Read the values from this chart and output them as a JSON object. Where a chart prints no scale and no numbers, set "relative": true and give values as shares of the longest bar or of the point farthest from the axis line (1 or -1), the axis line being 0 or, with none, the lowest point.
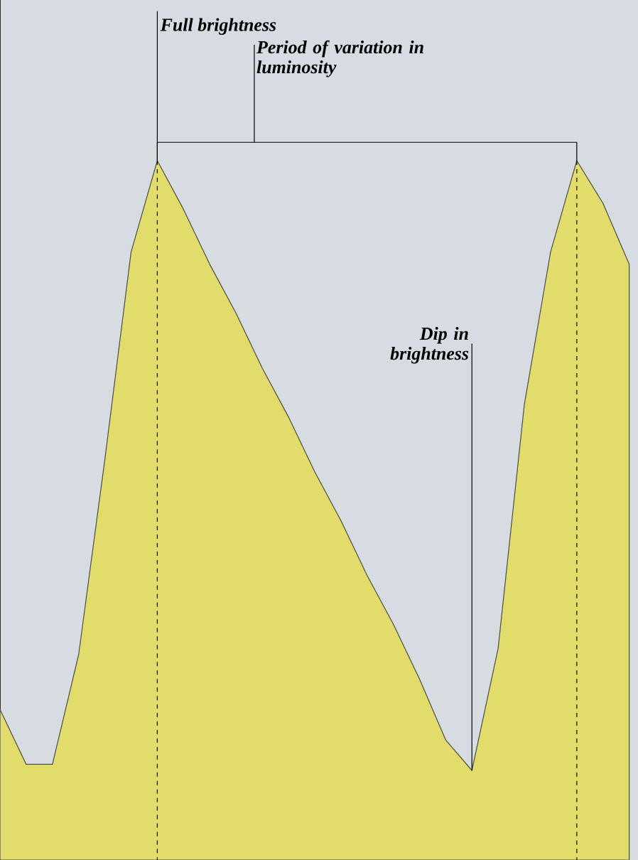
{
  "chart_data": {
    "type": "area",
    "relative": true,
    "categories": [
      null,
      null,
      null,
      null,
      null,
      null,
      null,
      null,
      null,
      null,
      null,
      null,
      null,
      null,
      null,
      null,
      null,
      null,
      null,
      null,
      null,
      null,
      null,
      null,
      null
    ],
    "values": [
      0.1,
      0.01,
      0.01,
      0.19,
      0.51,
      0.85,
      1,
      0.92,
      0.83,
      0.75,
      0.66,
      0.58,
      0.49,
      0.41,
      0.32,
      0.24,
      0.15,
      0.05,
      0.0,
      0.2,
      0.6,
      0.85,
      1,
      0.93,
      0.83
    ],
    "color": "#e2dc6a",
    "annotations": [
      "Full brightness",
      "Period of variation in luminosity",
      "Dip in brightness"
    ]
  }
}
